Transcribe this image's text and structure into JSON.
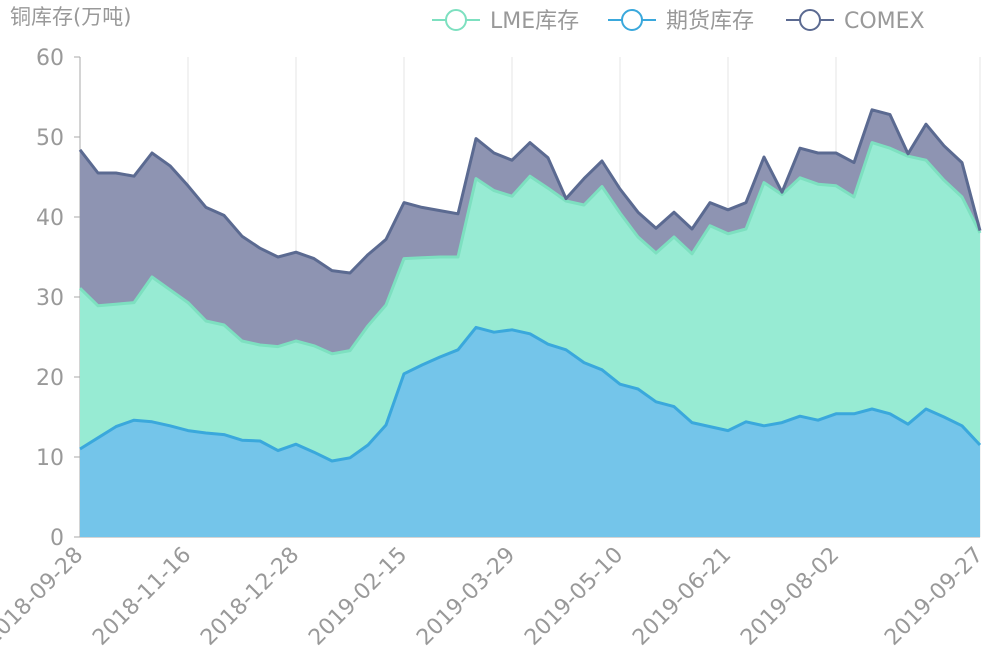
{
  "chart_data": {
    "type": "stacked-area",
    "title": "铜库存(万吨)",
    "categories": [
      "2018-09-28",
      null,
      null,
      null,
      null,
      null,
      "2018-11-16",
      null,
      null,
      null,
      null,
      null,
      "2018-12-28",
      null,
      null,
      null,
      null,
      null,
      "2019-02-15",
      null,
      null,
      null,
      null,
      null,
      "2019-03-29",
      null,
      null,
      null,
      null,
      null,
      "2019-05-10",
      null,
      null,
      null,
      null,
      null,
      "2019-06-21",
      null,
      null,
      null,
      null,
      null,
      "2019-08-02",
      null,
      null,
      null,
      null,
      null,
      null,
      null,
      "2019-09-27"
    ],
    "series": [
      {
        "name": "LME库存",
        "color": "#7de0c0",
        "fill": "#97ebd3",
        "values": [
          20.1,
          16.5,
          15.3,
          14.7,
          18.1,
          17.0,
          16.0,
          14.0,
          13.7,
          12.4,
          12.0,
          13.0,
          12.9,
          13.3,
          13.4,
          13.4,
          14.9,
          15.0,
          14.4,
          13.4,
          12.5,
          11.6,
          18.6,
          17.7,
          16.7,
          19.7,
          19.5,
          18.6,
          19.7,
          22.9,
          21.4,
          19.0,
          18.6,
          21.2,
          21.1,
          25.1,
          24.6,
          24.1,
          30.4,
          28.5,
          29.8,
          29.5,
          28.5,
          27.1,
          33.3,
          33.2,
          33.5,
          31.1,
          29.6,
          28.6,
          26.5
        ]
      },
      {
        "name": "期货库存",
        "color": "#3aa8dc",
        "fill": "#74c5ea",
        "values": [
          11.0,
          12.4,
          13.8,
          14.6,
          14.4,
          13.9,
          13.3,
          13.0,
          12.8,
          12.1,
          12.0,
          10.8,
          11.6,
          10.6,
          9.5,
          9.9,
          11.5,
          14.0,
          20.4,
          21.5,
          22.5,
          23.4,
          26.2,
          25.6,
          25.9,
          25.4,
          24.1,
          23.4,
          21.8,
          20.9,
          19.1,
          18.5,
          16.9,
          16.3,
          14.3,
          13.8,
          13.3,
          14.4,
          13.9,
          14.3,
          15.1,
          14.6,
          15.4,
          15.4,
          16.0,
          15.4,
          14.1,
          16.0,
          15.0,
          13.9,
          11.5
        ]
      },
      {
        "name": "COMEX",
        "color": "#5b6a91",
        "fill": "#8e94b2",
        "values": [
          17.3,
          16.6,
          16.4,
          15.8,
          15.5,
          15.5,
          14.6,
          14.2,
          13.7,
          13.1,
          12.1,
          11.2,
          11.1,
          10.9,
          10.4,
          9.7,
          8.9,
          8.2,
          7.0,
          6.3,
          5.8,
          5.4,
          5.0,
          4.7,
          4.5,
          4.2,
          3.8,
          0.3,
          3.3,
          3.2,
          3.0,
          3.1,
          3.1,
          3.1,
          3.1,
          2.9,
          3.0,
          3.3,
          3.2,
          0.3,
          3.7,
          3.9,
          4.1,
          4.3,
          4.1,
          4.2,
          0.3,
          4.5,
          4.3,
          4.3,
          0.3
        ]
      }
    ],
    "ylim": [
      0,
      60
    ],
    "yticks": [
      0,
      10,
      20,
      30,
      40,
      50,
      60
    ],
    "grid": true
  }
}
